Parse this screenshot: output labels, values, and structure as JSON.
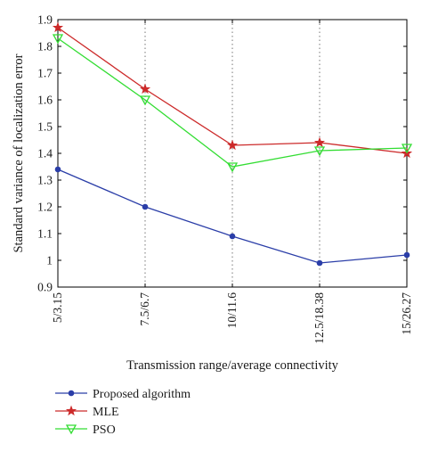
{
  "chart_data": {
    "type": "line",
    "title": "",
    "xlabel": "Transmission range/average connectivity",
    "ylabel": "Standard variance of localization error",
    "categories": [
      "5/3.15",
      "7.5/6.7",
      "10/11.6",
      "12.5/18.38",
      "15/26.27"
    ],
    "ylim": [
      0.9,
      1.9
    ],
    "yticks": [
      "0.9",
      "1",
      "1.1",
      "1.2",
      "1.3",
      "1.4",
      "1.5",
      "1.6",
      "1.7",
      "1.8",
      "1.9"
    ],
    "grid": "vertical dotted",
    "legend_position": "bottom-left, below plot",
    "series": [
      {
        "name": "Proposed algorithm",
        "color": "#2b3ea8",
        "marker": "dot",
        "values": [
          1.34,
          1.2,
          1.09,
          0.99,
          1.02
        ]
      },
      {
        "name": "MLE",
        "color": "#cc2a2a",
        "marker": "star",
        "values": [
          1.87,
          1.64,
          1.43,
          1.44,
          1.4
        ]
      },
      {
        "name": "PSO",
        "color": "#33dd33",
        "marker": "triangle-down",
        "values": [
          1.83,
          1.6,
          1.35,
          1.41,
          1.42
        ]
      }
    ]
  }
}
